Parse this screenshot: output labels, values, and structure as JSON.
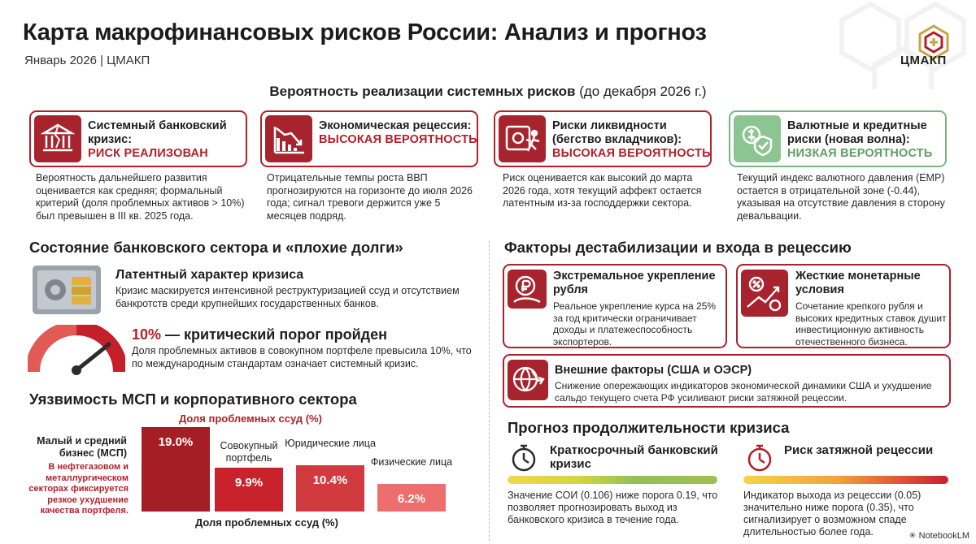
{
  "header": {
    "title": "Карта макрофинансовых рисков России: Анализ и прогноз",
    "subtitle": "Январь 2026 | ЦМАКП",
    "logo_text": "ЦМАКП"
  },
  "probabilities": {
    "heading_bold": "Вероятность реализации системных рисков",
    "heading_rest": " (до декабря 2026 г.)",
    "cards": [
      {
        "title": "Системный банковский кризис:",
        "status": "РИСК РЕАЛИЗОВАН",
        "description": "Вероятность дальнейшего развития оценивается как средняя; формальный критерий (доля проблемных активов > 10%) был превышен в III кв. 2025 года.",
        "icon": "bank-crack-icon"
      },
      {
        "title": "Экономическая рецессия:",
        "status": "ВЫСОКАЯ ВЕРОЯТНОСТЬ",
        "description": "Отрицательные темпы роста ВВП прогнозируются на горизонте до июля 2026 года; сигнал тревоги держится уже 5 месяцев подряд.",
        "icon": "falling-chart-icon"
      },
      {
        "title": "Риски ликвидности (бегство вкладчиков):",
        "status": "ВЫСОКАЯ ВЕРОЯТНОСТЬ",
        "description": "Риск оценивается как высокий до марта 2026 года, хотя текущий аффект остается латентным из-за господдержки сектора.",
        "icon": "safe-running-person-icon"
      },
      {
        "title": "Валютные и кредитные риски (новая волна):",
        "status": "НИЗКАЯ ВЕРОЯТНОСТЬ",
        "description": "Текущий индекс валютного давления (EMP) остается в отрицательной зоне (-0.44), указывая на отсутствие давления в сторону девальвации.",
        "icon": "currency-shield-icon"
      }
    ]
  },
  "banking": {
    "heading": "Состояние банковского сектора и «плохие долги»",
    "latent_title": "Латентный характер кризиса",
    "latent_text": "Кризис маскируется интенсивной реструктуризацией ссуд и отсутствием банкротств среди крупнейших государственных банков.",
    "threshold_value": "10%",
    "threshold_title": " — критический порог пройден",
    "threshold_text": "Доля проблемных активов в совокупном портфеле превысила 10%, что по международным стандартам означает системный кризис."
  },
  "msp": {
    "heading": "Уязвимость МСП и корпоративного сектора",
    "top_label": "Доля проблемных ссуд (%)",
    "bottom_label": "Доля проблемных ссуд (%)",
    "side_title": "Малый и средний бизнес (МСП)",
    "side_note": "В нефтегазовом и металлургическом секторах фиксируется резкое ухудшение качества портфеля.",
    "chart_data": {
      "type": "bar",
      "categories": [
        "Малый и средний бизнес (МСП)",
        "Совокупный портфель",
        "Юридические лица",
        "Физические лица"
      ],
      "values": [
        19.0,
        9.9,
        10.4,
        6.2
      ],
      "labels": [
        "19.0%",
        "9.9%",
        "10.4%",
        "6.2%"
      ],
      "title": "Доля проблемных ссуд (%)",
      "xlabel": "Доля проблемных ссуд (%)",
      "ylabel": ""
    },
    "bar_labels": [
      "Совокупный портфель",
      "Юридические лица",
      "Физические лица"
    ]
  },
  "factors": {
    "heading": "Факторы дестабилизации и входа в рецессию",
    "items": [
      {
        "title": "Экстремальное укрепление рубля",
        "text": "Реальное укрепление курса на 25% за год критически ограничивает доходы и платежеспособность экспортеров.",
        "icon": "ruble-coin-icon"
      },
      {
        "title": "Жесткие монетарные условия",
        "text": "Сочетание крепкого рубля и высоких кредитных ставок душит инвестиционную активность отечественного бизнеса.",
        "icon": "percent-growth-icon"
      },
      {
        "title": "Внешние факторы (США и ОЭСР)",
        "text": "Снижение опережающих индикаторов экономической динамики США и ухудшение сальдо текущего счета РФ усиливают риски затяжной рецессии.",
        "icon": "globe-decline-icon"
      }
    ]
  },
  "forecast": {
    "heading": "Прогноз продолжительности кризиса",
    "items": [
      {
        "title": "Краткосрочный банковский кризис",
        "text": "Значение СОИ (0.106) ниже порога 0.19, что позволяет прогнозировать выход из банковского кризиса в течение года.",
        "icon": "stopwatch-icon"
      },
      {
        "title": "Риск затяжной рецессии",
        "text": "Индикатор выхода из рецессии (0.05) значительно ниже порога (0.35), что сигнализирует о возможном спаде длительностью более года.",
        "icon": "stopwatch-icon"
      }
    ]
  },
  "footer": {
    "brand": "NotebookLM"
  },
  "colors": {
    "accent_red": "#b3202a",
    "accent_green": "#5f9f65"
  }
}
